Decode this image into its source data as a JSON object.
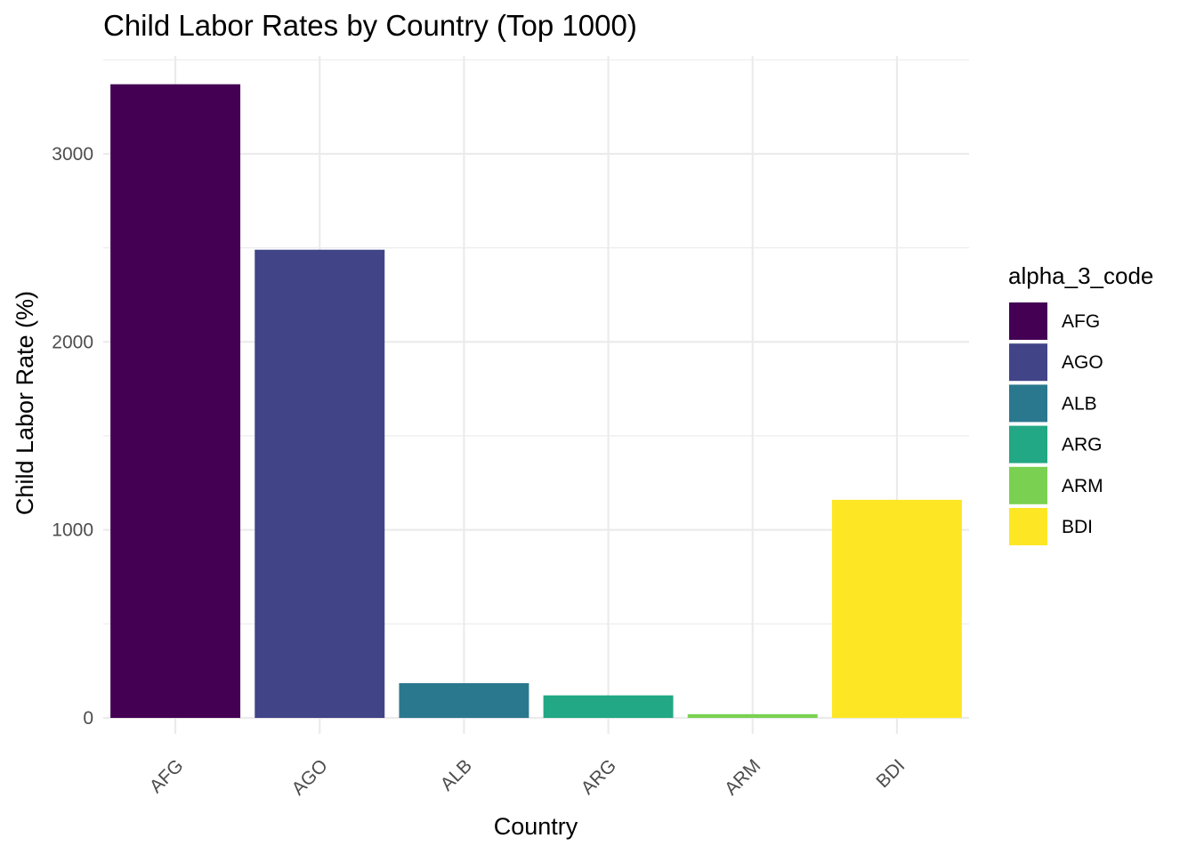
{
  "chart_data": {
    "type": "bar",
    "title": "Child Labor Rates by Country (Top 1000)",
    "xlabel": "Country",
    "ylabel": "Child Labor Rate (%)",
    "categories": [
      "AFG",
      "AGO",
      "ALB",
      "ARG",
      "ARM",
      "BDI"
    ],
    "values": [
      3370,
      2490,
      185,
      120,
      20,
      1160
    ],
    "colors": [
      "#440154",
      "#414487",
      "#2A788E",
      "#22A884",
      "#7AD151",
      "#FDE725"
    ],
    "ylim": [
      -85,
      3520
    ],
    "yticks": [
      0,
      1000,
      2000,
      3000
    ],
    "ytick_labels": [
      "0",
      "1000",
      "2000",
      "3000"
    ],
    "yminor": [
      500,
      1500,
      2500,
      3500
    ],
    "grid": true,
    "legend": {
      "title": "alpha_3_code",
      "position": "right",
      "entries": [
        "AFG",
        "AGO",
        "ALB",
        "ARG",
        "ARM",
        "BDI"
      ]
    }
  }
}
